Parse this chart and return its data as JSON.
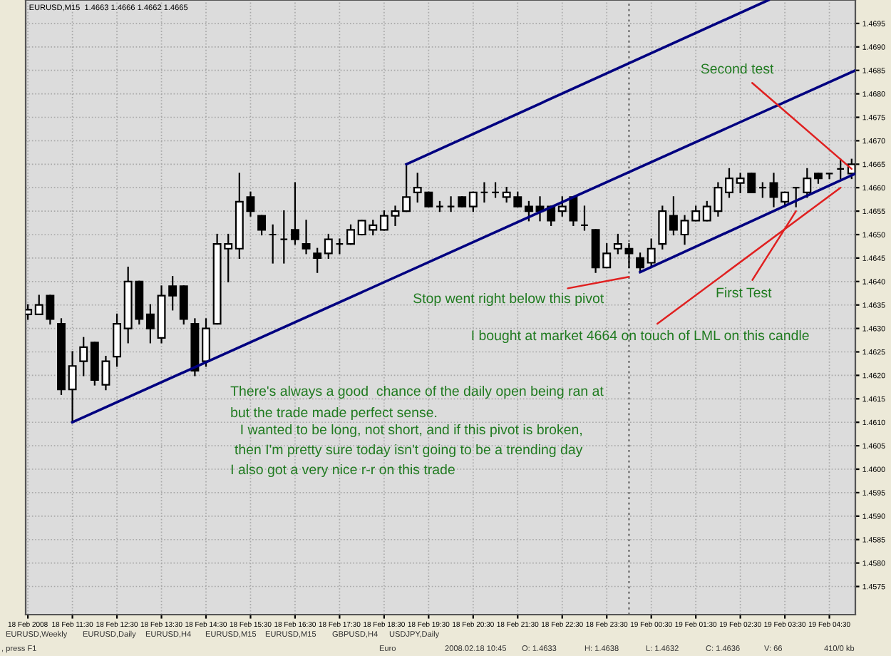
{
  "chart_data": {
    "type": "candlestick",
    "title": "EURUSD,M15  1.4663 1.4666 1.4662 1.4665",
    "x": [
      "2008-02-18T10:30",
      "2008-02-18T10:45",
      "2008-02-18T11:00",
      "2008-02-18T11:15",
      "2008-02-18T11:30",
      "2008-02-18T11:45",
      "2008-02-18T12:00",
      "2008-02-18T12:15",
      "2008-02-18T12:30",
      "2008-02-18T12:45",
      "2008-02-18T13:00",
      "2008-02-18T13:15",
      "2008-02-18T13:30",
      "2008-02-18T13:45",
      "2008-02-18T14:00",
      "2008-02-18T14:15",
      "2008-02-18T14:30",
      "2008-02-18T14:45",
      "2008-02-18T15:00",
      "2008-02-18T15:15",
      "2008-02-18T15:30",
      "2008-02-18T15:45",
      "2008-02-18T16:00",
      "2008-02-18T16:15",
      "2008-02-18T16:30",
      "2008-02-18T16:45",
      "2008-02-18T17:00",
      "2008-02-18T17:15",
      "2008-02-18T17:30",
      "2008-02-18T17:45",
      "2008-02-18T18:00",
      "2008-02-18T18:15",
      "2008-02-18T18:30",
      "2008-02-18T18:45",
      "2008-02-18T19:00",
      "2008-02-18T19:15",
      "2008-02-18T19:30",
      "2008-02-18T19:45",
      "2008-02-18T20:00",
      "2008-02-18T20:15",
      "2008-02-18T20:30",
      "2008-02-18T20:45",
      "2008-02-18T21:00",
      "2008-02-18T21:15",
      "2008-02-18T21:30",
      "2008-02-18T21:45",
      "2008-02-18T22:00",
      "2008-02-18T22:15",
      "2008-02-18T22:30",
      "2008-02-18T22:45",
      "2008-02-18T23:00",
      "2008-02-18T23:15",
      "2008-02-18T23:30",
      "2008-02-18T23:45",
      "2008-02-19T00:00",
      "2008-02-19T00:15",
      "2008-02-19T00:30",
      "2008-02-19T00:45",
      "2008-02-19T01:00",
      "2008-02-19T01:15",
      "2008-02-19T01:30",
      "2008-02-19T01:45",
      "2008-02-19T02:00",
      "2008-02-19T02:15",
      "2008-02-19T02:30",
      "2008-02-19T02:45",
      "2008-02-19T03:00",
      "2008-02-19T03:15",
      "2008-02-19T03:30",
      "2008-02-19T03:45",
      "2008-02-19T04:00",
      "2008-02-19T04:15",
      "2008-02-19T04:30",
      "2008-02-19T04:45",
      "2008-02-19T05:00"
    ],
    "ohlc": [
      [
        1.4633,
        1.4635,
        1.4632,
        1.4634
      ],
      [
        1.4633,
        1.4637,
        1.4633,
        1.4635
      ],
      [
        1.4637,
        1.4637,
        1.4631,
        1.4632
      ],
      [
        1.4631,
        1.4632,
        1.4616,
        1.4617
      ],
      [
        1.4617,
        1.4625,
        1.461,
        1.4622
      ],
      [
        1.4623,
        1.4628,
        1.462,
        1.4626
      ],
      [
        1.4627,
        1.4627,
        1.4618,
        1.4619
      ],
      [
        1.4618,
        1.4624,
        1.4617,
        1.4623
      ],
      [
        1.4624,
        1.4633,
        1.4622,
        1.4631
      ],
      [
        1.463,
        1.4643,
        1.4627,
        1.464
      ],
      [
        1.464,
        1.464,
        1.4631,
        1.4632
      ],
      [
        1.4633,
        1.4635,
        1.4627,
        1.463
      ],
      [
        1.4628,
        1.4639,
        1.4627,
        1.4637
      ],
      [
        1.4639,
        1.4641,
        1.4634,
        1.4637
      ],
      [
        1.4639,
        1.4639,
        1.4631,
        1.4632
      ],
      [
        1.4631,
        1.4632,
        1.462,
        1.4621
      ],
      [
        1.4623,
        1.4632,
        1.4622,
        1.463
      ],
      [
        1.4631,
        1.465,
        1.4631,
        1.4648
      ],
      [
        1.4647,
        1.465,
        1.464,
        1.4648
      ],
      [
        1.4647,
        1.4663,
        1.4645,
        1.4657
      ],
      [
        1.4658,
        1.4659,
        1.4654,
        1.4655
      ],
      [
        1.4654,
        1.4654,
        1.465,
        1.4651
      ],
      [
        1.465,
        1.4652,
        1.4644,
        1.465
      ],
      [
        1.4649,
        1.4655,
        1.4644,
        1.4649
      ],
      [
        1.4651,
        1.4661,
        1.4648,
        1.4649
      ],
      [
        1.4648,
        1.4653,
        1.4646,
        1.4647
      ],
      [
        1.4646,
        1.4647,
        1.4642,
        1.4645
      ],
      [
        1.4646,
        1.465,
        1.4645,
        1.4649
      ],
      [
        1.4648,
        1.4649,
        1.4646,
        1.4648
      ],
      [
        1.4648,
        1.4652,
        1.4648,
        1.4651
      ],
      [
        1.465,
        1.4653,
        1.465,
        1.4653
      ],
      [
        1.4651,
        1.4653,
        1.465,
        1.4652
      ],
      [
        1.4651,
        1.4655,
        1.4651,
        1.4654
      ],
      [
        1.4654,
        1.4656,
        1.4652,
        1.4655
      ],
      [
        1.4655,
        1.4665,
        1.4655,
        1.4658
      ],
      [
        1.4659,
        1.4663,
        1.4657,
        1.466
      ],
      [
        1.4659,
        1.4659,
        1.4656,
        1.4656
      ],
      [
        1.4656,
        1.4657,
        1.4655,
        1.4656
      ],
      [
        1.4656,
        1.4658,
        1.4655,
        1.4656
      ],
      [
        1.4658,
        1.4658,
        1.4656,
        1.4656
      ],
      [
        1.4656,
        1.4659,
        1.4655,
        1.4659
      ],
      [
        1.4659,
        1.4661,
        1.4657,
        1.4659
      ],
      [
        1.4659,
        1.4661,
        1.4658,
        1.4659
      ],
      [
        1.4658,
        1.466,
        1.4657,
        1.4659
      ],
      [
        1.4658,
        1.4659,
        1.4656,
        1.4656
      ],
      [
        1.4656,
        1.4657,
        1.4653,
        1.4655
      ],
      [
        1.4656,
        1.4658,
        1.4653,
        1.4655
      ],
      [
        1.4656,
        1.4656,
        1.4652,
        1.4653
      ],
      [
        1.4655,
        1.4658,
        1.4654,
        1.4656
      ],
      [
        1.4658,
        1.4658,
        1.4652,
        1.4653
      ],
      [
        1.4652,
        1.4656,
        1.4651,
        1.4652
      ],
      [
        1.4651,
        1.4651,
        1.4642,
        1.4643
      ],
      [
        1.4643,
        1.4648,
        1.4643,
        1.4646
      ],
      [
        1.4647,
        1.465,
        1.4646,
        1.4648
      ],
      [
        1.4647,
        1.4648,
        1.4643,
        1.4646
      ],
      [
        1.4645,
        1.4646,
        1.4642,
        1.4643
      ],
      [
        1.4644,
        1.4649,
        1.4643,
        1.4647
      ],
      [
        1.4648,
        1.4656,
        1.4647,
        1.4655
      ],
      [
        1.4654,
        1.4658,
        1.465,
        1.4651
      ],
      [
        1.465,
        1.4654,
        1.4648,
        1.4653
      ],
      [
        1.4653,
        1.4656,
        1.4653,
        1.4655
      ],
      [
        1.4653,
        1.4657,
        1.4653,
        1.4656
      ],
      [
        1.4655,
        1.4661,
        1.4654,
        1.466
      ],
      [
        1.4659,
        1.4664,
        1.4658,
        1.4662
      ],
      [
        1.4661,
        1.4663,
        1.4659,
        1.4662
      ],
      [
        1.4663,
        1.4663,
        1.4659,
        1.4659
      ],
      [
        1.466,
        1.4661,
        1.4658,
        1.466
      ],
      [
        1.4661,
        1.4663,
        1.4656,
        1.4658
      ],
      [
        1.4657,
        1.4659,
        1.4656,
        1.4659
      ],
      [
        1.466,
        1.466,
        1.4656,
        1.466
      ],
      [
        1.4659,
        1.4664,
        1.4658,
        1.4662
      ],
      [
        1.4663,
        1.4663,
        1.4661,
        1.4662
      ],
      [
        1.4663,
        1.4663,
        1.4662,
        1.4663
      ],
      [
        1.4664,
        1.4666,
        1.4662,
        1.4664
      ],
      [
        1.4663,
        1.4666,
        1.4662,
        1.4665
      ]
    ],
    "series": [
      {
        "type": "line",
        "color": "#000080",
        "x": [
          "2008-02-18T11:30",
          "2008-02-19T05:05"
        ],
        "values": [
          1.461,
          1.4685
        ]
      },
      {
        "type": "line",
        "color": "#000080",
        "x": [
          "2008-02-18T19:00",
          "2008-02-19T03:08"
        ],
        "values": [
          1.4665,
          1.47
        ]
      },
      {
        "type": "line",
        "color": "#000080",
        "x": [
          "2008-02-19T00:15",
          "2008-02-19T05:05"
        ],
        "values": [
          1.4642,
          1.4663
        ]
      }
    ],
    "xlim": [
      "2008-02-18T10:27",
      "2008-02-19T05:05"
    ],
    "xticks": [
      {
        "value": "2008-02-18T10:30",
        "label": "18 Feb 2008"
      },
      {
        "value": "2008-02-18T11:30",
        "label": "18 Feb 11:30"
      },
      {
        "value": "2008-02-18T12:30",
        "label": "18 Feb 12:30"
      },
      {
        "value": "2008-02-18T13:30",
        "label": "18 Feb 13:30"
      },
      {
        "value": "2008-02-18T14:30",
        "label": "18 Feb 14:30"
      },
      {
        "value": "2008-02-18T15:30",
        "label": "18 Feb 15:30"
      },
      {
        "value": "2008-02-18T16:30",
        "label": "18 Feb 16:30"
      },
      {
        "value": "2008-02-18T17:30",
        "label": "18 Feb 17:30"
      },
      {
        "value": "2008-02-18T18:30",
        "label": "18 Feb 18:30"
      },
      {
        "value": "2008-02-18T19:30",
        "label": "18 Feb 19:30"
      },
      {
        "value": "2008-02-18T20:30",
        "label": "18 Feb 20:30"
      },
      {
        "value": "2008-02-18T21:30",
        "label": "18 Feb 21:30"
      },
      {
        "value": "2008-02-18T22:30",
        "label": "18 Feb 22:30"
      },
      {
        "value": "2008-02-18T23:30",
        "label": "18 Feb 23:30"
      },
      {
        "value": "2008-02-19T00:30",
        "label": "19 Feb 00:30"
      },
      {
        "value": "2008-02-19T01:30",
        "label": "19 Feb 01:30"
      },
      {
        "value": "2008-02-19T02:30",
        "label": "19 Feb 02:30"
      },
      {
        "value": "2008-02-19T03:30",
        "label": "19 Feb 03:30"
      },
      {
        "value": "2008-02-19T04:30",
        "label": "19 Feb 04:30"
      }
    ],
    "ylim": [
      1.4569,
      1.47
    ],
    "yticks": [
      {
        "value": 1.4575,
        "label": "1.4575"
      },
      {
        "value": 1.458,
        "label": "1.4580"
      },
      {
        "value": 1.4585,
        "label": "1.4585"
      },
      {
        "value": 1.459,
        "label": "1.4590"
      },
      {
        "value": 1.4595,
        "label": "1.4595"
      },
      {
        "value": 1.46,
        "label": "1.4600"
      },
      {
        "value": 1.4605,
        "label": "1.4605"
      },
      {
        "value": 1.461,
        "label": "1.4610"
      },
      {
        "value": 1.4615,
        "label": "1.4615"
      },
      {
        "value": 1.462,
        "label": "1.4620"
      },
      {
        "value": 1.4625,
        "label": "1.4625"
      },
      {
        "value": 1.463,
        "label": "1.4630"
      },
      {
        "value": 1.4635,
        "label": "1.4635"
      },
      {
        "value": 1.464,
        "label": "1.4640"
      },
      {
        "value": 1.4645,
        "label": "1.4645"
      },
      {
        "value": 1.465,
        "label": "1.4650"
      },
      {
        "value": 1.4655,
        "label": "1.4655"
      },
      {
        "value": 1.466,
        "label": "1.4660"
      },
      {
        "value": 1.4665,
        "label": "1.4665"
      },
      {
        "value": 1.467,
        "label": "1.4670"
      },
      {
        "value": 1.4675,
        "label": "1.4675"
      },
      {
        "value": 1.468,
        "label": "1.4680"
      },
      {
        "value": 1.4685,
        "label": "1.4685"
      },
      {
        "value": 1.469,
        "label": "1.4690"
      },
      {
        "value": 1.4695,
        "label": "1.4695"
      }
    ],
    "grid": true,
    "ref_lines": [
      {
        "axis": "x",
        "value": "2008-02-19T00:00",
        "color": "#808080",
        "line_style": "dotted"
      }
    ],
    "annotations": [
      {
        "text": "Second test",
        "x": "2008-02-19T05:00",
        "y": 1.4664
      },
      {
        "text": "Stop went right below this pivot",
        "x": "2008-02-19T00:00",
        "y": 1.4641
      },
      {
        "text": "First Test",
        "x": "2008-02-19T03:45",
        "y": 1.4655
      },
      {
        "text": "I bought at market 4664 on touch of LML on this candle",
        "x": "2008-02-19T04:45",
        "y": 1.466
      },
      "There's always a good  chance of the daily open being ran at",
      "but the trade made perfect sense.",
      "I wanted to be long, not short, and if this pivot is broken,",
      "then I'm pretty sure today isn't going to be a trending day",
      "I also got a very nice r-r on this trade",
      "EURUSD,Weekly",
      "EURUSD,Daily",
      "EURUSD,H4",
      "EURUSD,M15",
      "EURUSD,M15",
      "GBPUSD,H4",
      "USDJPY,Daily",
      ", press F1",
      "Euro",
      "2008.02.18 10:45",
      "O: 1.4633",
      "H: 1.4638",
      "L: 1.4632",
      "C: 1.4636",
      "V: 66",
      "410/0 kb"
    ]
  }
}
